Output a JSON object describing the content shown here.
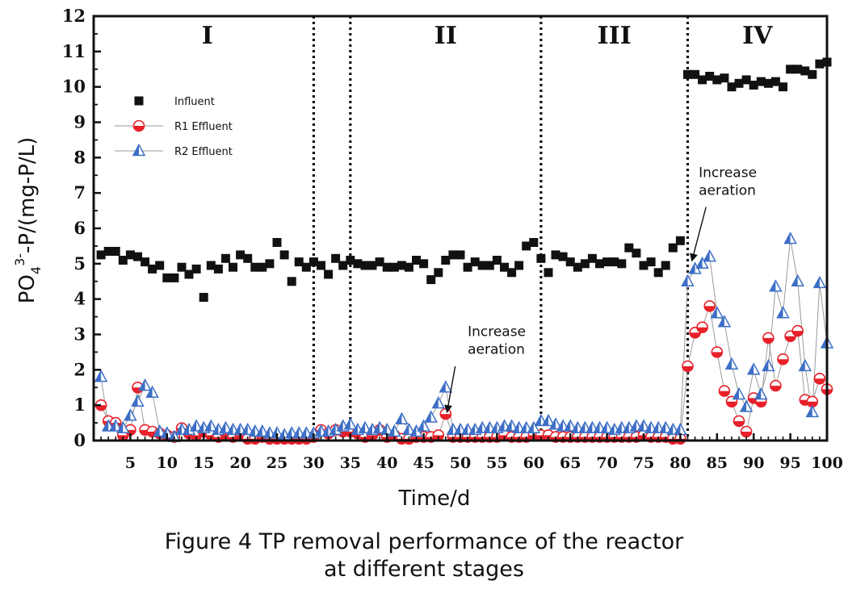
{
  "caption": {
    "line1": "Figure 4 TP removal performance of the reactor",
    "line2": "at different stages"
  },
  "chart_data": {
    "type": "scatter",
    "xlabel": "Time/d",
    "ylabel_parts": {
      "base": "PO",
      "sub": "4",
      "sup": "3-",
      "rest": "-P/(mg-P/L)"
    },
    "xlim": [
      0,
      100
    ],
    "ylim": [
      0,
      12
    ],
    "x_ticks": [
      5,
      10,
      15,
      20,
      25,
      30,
      35,
      40,
      45,
      50,
      55,
      60,
      65,
      70,
      75,
      80,
      85,
      90,
      95,
      100
    ],
    "y_ticks": [
      0,
      1,
      2,
      3,
      4,
      5,
      6,
      7,
      8,
      9,
      10,
      11,
      12
    ],
    "grid": false,
    "legend_position": "upper-left",
    "stage_boundaries": [
      30,
      35,
      61,
      81
    ],
    "stages": [
      {
        "label": "I",
        "x": 15.5
      },
      {
        "label": "II",
        "x": 48
      },
      {
        "label": "III",
        "x": 71
      },
      {
        "label": "IV",
        "x": 90.5
      }
    ],
    "annotations": [
      {
        "line1": "Increase",
        "line2": "aeration",
        "text_x": 51,
        "text_y": 2.95,
        "arrow_from": [
          49.3,
          2.1
        ],
        "arrow_to": [
          48.2,
          0.82
        ]
      },
      {
        "line1": "Increase",
        "line2": "aeration",
        "text_x": 82.5,
        "text_y": 7.45,
        "arrow_from": [
          83.5,
          6.6
        ],
        "arrow_to": [
          81.6,
          5.1
        ]
      }
    ],
    "series": [
      {
        "name": "Influent",
        "marker": "square",
        "color": "#111111",
        "x": [
          1,
          2,
          3,
          4,
          5,
          6,
          7,
          8,
          9,
          10,
          11,
          12,
          13,
          14,
          15,
          16,
          17,
          18,
          19,
          20,
          21,
          22,
          23,
          24,
          25,
          26,
          27,
          28,
          29,
          30,
          31,
          32,
          33,
          34,
          35,
          36,
          37,
          38,
          39,
          40,
          41,
          42,
          43,
          44,
          45,
          46,
          47,
          48,
          49,
          50,
          51,
          52,
          53,
          54,
          55,
          56,
          57,
          58,
          59,
          60,
          61,
          62,
          63,
          64,
          65,
          66,
          67,
          68,
          69,
          70,
          71,
          72,
          73,
          74,
          75,
          76,
          77,
          78,
          79,
          80,
          81,
          82,
          83,
          84,
          85,
          86,
          87,
          88,
          89,
          90,
          91,
          92,
          93,
          94,
          95,
          96,
          97,
          98,
          99,
          100
        ],
        "y": [
          5.25,
          5.35,
          5.35,
          5.1,
          5.25,
          5.2,
          5.05,
          4.85,
          4.95,
          4.6,
          4.6,
          4.9,
          4.7,
          4.85,
          4.05,
          4.95,
          4.85,
          5.15,
          4.9,
          5.25,
          5.15,
          4.9,
          4.9,
          5.0,
          5.6,
          5.25,
          4.5,
          5.05,
          4.9,
          5.05,
          4.95,
          4.7,
          5.15,
          4.95,
          5.1,
          5.0,
          4.95,
          4.95,
          5.05,
          4.9,
          4.9,
          4.95,
          4.9,
          5.1,
          5.0,
          4.55,
          4.75,
          5.1,
          5.25,
          5.25,
          4.9,
          5.05,
          4.95,
          4.95,
          5.1,
          4.9,
          4.75,
          4.95,
          5.5,
          5.6,
          5.15,
          4.75,
          5.25,
          5.2,
          5.05,
          4.9,
          5.0,
          5.15,
          5.0,
          5.05,
          5.05,
          5.0,
          5.45,
          5.3,
          4.95,
          5.05,
          4.75,
          4.95,
          5.45,
          5.65,
          10.35,
          10.35,
          10.2,
          10.3,
          10.2,
          10.25,
          10.0,
          10.1,
          10.2,
          10.05,
          10.15,
          10.1,
          10.15,
          10.0,
          10.5,
          10.5,
          10.45,
          10.35,
          10.65,
          10.7
        ]
      },
      {
        "name": "R1 Effluent",
        "marker": "half-circle",
        "color": "#e8202a",
        "x": [
          1,
          2,
          3,
          4,
          5,
          6,
          7,
          8,
          9,
          10,
          11,
          12,
          13,
          14,
          15,
          16,
          17,
          18,
          19,
          20,
          21,
          22,
          23,
          24,
          25,
          26,
          27,
          28,
          29,
          30,
          31,
          32,
          33,
          34,
          35,
          36,
          37,
          38,
          39,
          40,
          41,
          42,
          43,
          44,
          45,
          46,
          47,
          48,
          49,
          50,
          51,
          52,
          53,
          54,
          55,
          56,
          57,
          58,
          59,
          60,
          61,
          62,
          63,
          64,
          65,
          66,
          67,
          68,
          69,
          70,
          71,
          72,
          73,
          74,
          75,
          76,
          77,
          78,
          79,
          80,
          81,
          82,
          83,
          84,
          85,
          86,
          87,
          88,
          89,
          90,
          91,
          92,
          93,
          94,
          95,
          96,
          97,
          98,
          99,
          100
        ],
        "y": [
          1.0,
          0.55,
          0.5,
          0.15,
          0.3,
          1.5,
          0.3,
          0.25,
          0.2,
          0.15,
          0.1,
          0.35,
          0.2,
          0.15,
          0.25,
          0.15,
          0.1,
          0.2,
          0.1,
          0.15,
          0.05,
          0.05,
          0.1,
          0.05,
          0.05,
          0.05,
          0.05,
          0.05,
          0.05,
          0.1,
          0.3,
          0.2,
          0.3,
          0.25,
          0.25,
          0.2,
          0.1,
          0.15,
          0.3,
          0.1,
          0.15,
          0.05,
          0.05,
          0.1,
          0.1,
          0.1,
          0.15,
          0.75,
          0.1,
          0.1,
          0.1,
          0.1,
          0.1,
          0.1,
          0.1,
          0.15,
          0.1,
          0.1,
          0.1,
          0.15,
          0.15,
          0.15,
          0.1,
          0.1,
          0.1,
          0.1,
          0.1,
          0.1,
          0.1,
          0.1,
          0.1,
          0.1,
          0.1,
          0.1,
          0.15,
          0.1,
          0.1,
          0.1,
          0.05,
          0.05,
          2.1,
          3.05,
          3.2,
          3.8,
          2.5,
          1.4,
          1.1,
          0.55,
          0.25,
          1.2,
          1.1,
          2.9,
          1.55,
          2.3,
          2.95,
          3.1,
          1.15,
          1.1,
          1.75,
          1.45
        ]
      },
      {
        "name": "R2 Effluent",
        "marker": "half-triangle",
        "color": "#3d6fc6",
        "x": [
          1,
          2,
          3,
          4,
          5,
          6,
          7,
          8,
          9,
          10,
          11,
          12,
          13,
          14,
          15,
          16,
          17,
          18,
          19,
          20,
          21,
          22,
          23,
          24,
          25,
          26,
          27,
          28,
          29,
          30,
          31,
          32,
          33,
          34,
          35,
          36,
          37,
          38,
          39,
          40,
          41,
          42,
          43,
          44,
          45,
          46,
          47,
          48,
          49,
          50,
          51,
          52,
          53,
          54,
          55,
          56,
          57,
          58,
          59,
          60,
          61,
          62,
          63,
          64,
          65,
          66,
          67,
          68,
          69,
          70,
          71,
          72,
          73,
          74,
          75,
          76,
          77,
          78,
          79,
          80,
          81,
          82,
          83,
          84,
          85,
          86,
          87,
          88,
          89,
          90,
          91,
          92,
          93,
          94,
          95,
          96,
          97,
          98,
          99,
          100
        ],
        "y": [
          1.8,
          0.4,
          0.4,
          0.35,
          0.7,
          1.1,
          1.55,
          1.35,
          0.25,
          0.2,
          0.1,
          0.3,
          0.3,
          0.4,
          0.35,
          0.4,
          0.3,
          0.35,
          0.3,
          0.3,
          0.3,
          0.25,
          0.25,
          0.2,
          0.2,
          0.15,
          0.2,
          0.2,
          0.2,
          0.2,
          0.25,
          0.25,
          0.3,
          0.4,
          0.45,
          0.3,
          0.35,
          0.3,
          0.35,
          0.3,
          0.25,
          0.6,
          0.3,
          0.25,
          0.4,
          0.65,
          1.05,
          1.5,
          0.3,
          0.3,
          0.3,
          0.3,
          0.35,
          0.35,
          0.35,
          0.4,
          0.4,
          0.35,
          0.35,
          0.35,
          0.55,
          0.55,
          0.45,
          0.4,
          0.4,
          0.35,
          0.35,
          0.35,
          0.35,
          0.35,
          0.3,
          0.35,
          0.35,
          0.4,
          0.4,
          0.35,
          0.35,
          0.35,
          0.3,
          0.3,
          4.5,
          4.85,
          5.0,
          5.2,
          3.6,
          3.35,
          2.15,
          1.3,
          0.95,
          2.0,
          1.3,
          2.1,
          4.35,
          3.6,
          5.7,
          4.5,
          2.1,
          0.8,
          4.45,
          2.75
        ]
      }
    ]
  }
}
